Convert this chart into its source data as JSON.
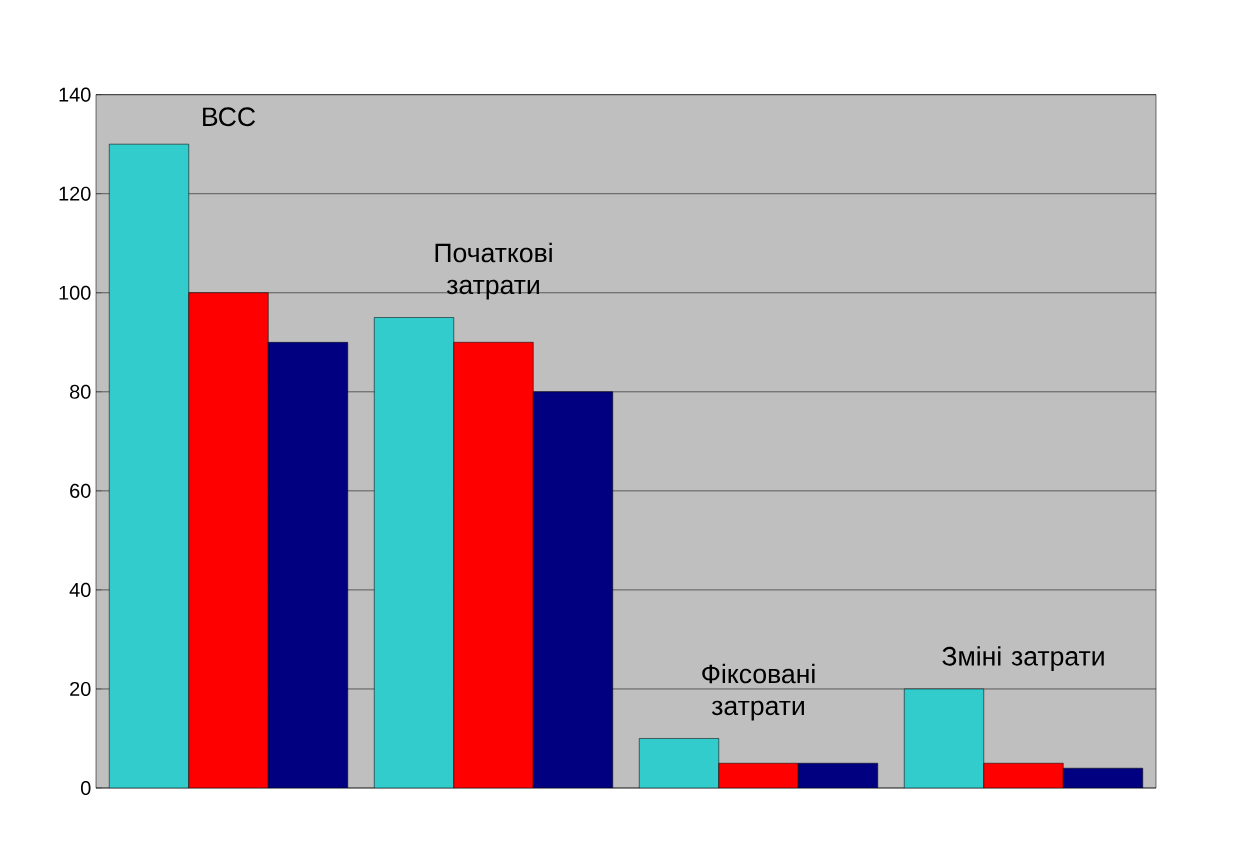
{
  "chart_data": {
    "type": "bar",
    "categories": [
      "ВСС",
      "Початкові затрати",
      "Фіксовані затрати",
      "Зміні затрати"
    ],
    "series": [
      {
        "color": "#33cccc",
        "values": [
          130,
          95,
          10,
          20
        ]
      },
      {
        "color": "#ff0000",
        "values": [
          100,
          90,
          5,
          5
        ]
      },
      {
        "color": "#000080",
        "values": [
          90,
          80,
          5,
          4
        ]
      }
    ],
    "ylim": [
      0,
      140
    ],
    "yticks": [
      0,
      20,
      40,
      60,
      80,
      100,
      120,
      140
    ],
    "grid": "y"
  }
}
